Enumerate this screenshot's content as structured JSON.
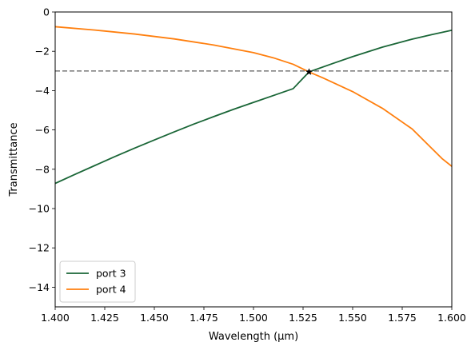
{
  "chart_data": {
    "type": "line",
    "title": "",
    "xlabel": "Wavelength (µm)",
    "ylabel": "Transmittance",
    "xlim": [
      1.4,
      1.6
    ],
    "ylim": [
      -15,
      0
    ],
    "xticks": [
      1.4,
      1.425,
      1.45,
      1.475,
      1.5,
      1.525,
      1.55,
      1.575,
      1.6
    ],
    "xtick_labels": [
      "1.400",
      "1.425",
      "1.450",
      "1.475",
      "1.500",
      "1.525",
      "1.550",
      "1.575",
      "1.600"
    ],
    "yticks": [
      0,
      -2,
      -4,
      -6,
      -8,
      -10,
      -12,
      -14
    ],
    "ytick_labels": [
      "0",
      "−2",
      "−4",
      "−6",
      "−8",
      "−10",
      "−12",
      "−14"
    ],
    "grid": false,
    "legend_position": "lower-left",
    "reference_line": {
      "y": -3,
      "color": "#808080",
      "style": "dashed"
    },
    "crossing_marker": {
      "x": 1.528,
      "y": -3.05,
      "color": "#000000",
      "shape": "star"
    },
    "series": [
      {
        "name": "port 3",
        "color": "#1a6637",
        "x": [
          1.4,
          1.41,
          1.42,
          1.43,
          1.44,
          1.45,
          1.46,
          1.47,
          1.48,
          1.49,
          1.5,
          1.51,
          1.52,
          1.528,
          1.54,
          1.55,
          1.565,
          1.58,
          1.59,
          1.6
        ],
        "y": [
          -8.72,
          -8.26,
          -7.81,
          -7.36,
          -6.93,
          -6.51,
          -6.1,
          -5.7,
          -5.32,
          -4.95,
          -4.6,
          -4.25,
          -3.9,
          -3.05,
          -2.62,
          -2.27,
          -1.79,
          -1.38,
          -1.15,
          -0.93
        ]
      },
      {
        "name": "port 4",
        "color": "#ff7f0e",
        "x": [
          1.4,
          1.42,
          1.44,
          1.46,
          1.48,
          1.5,
          1.51,
          1.52,
          1.528,
          1.535,
          1.55,
          1.565,
          1.58,
          1.595,
          1.6
        ],
        "y": [
          -0.75,
          -0.92,
          -1.12,
          -1.37,
          -1.68,
          -2.07,
          -2.33,
          -2.66,
          -3.05,
          -3.35,
          -4.05,
          -4.9,
          -5.95,
          -7.45,
          -7.85
        ]
      }
    ]
  }
}
